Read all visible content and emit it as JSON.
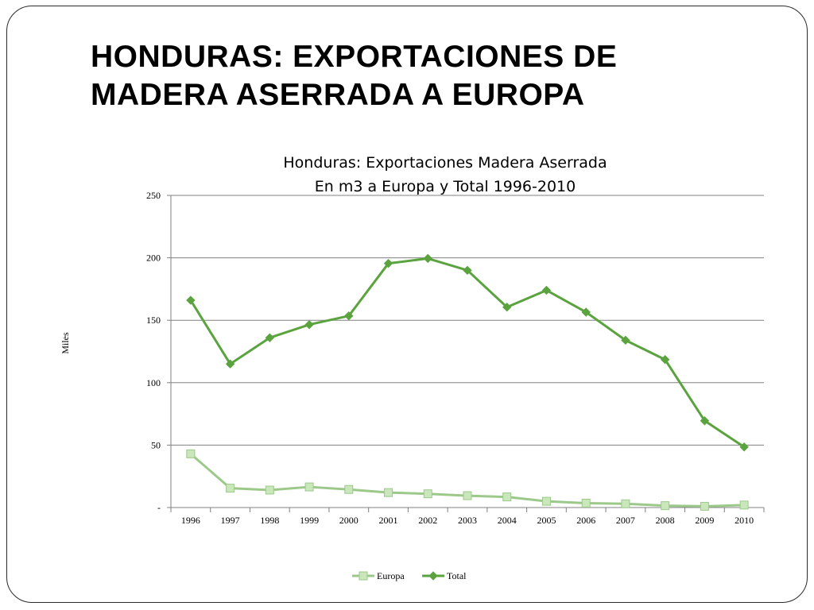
{
  "slide": {
    "title_line1": "HONDURAS: EXPORTACIONES DE",
    "title_line2": "MADERA ASERRADA A EUROPA"
  },
  "colors": {
    "total": "#5aa33f",
    "europa_line": "#9cc98a",
    "europa_fill": "#c9e7bb",
    "grid": "#808080",
    "frame": "#2a2a2a"
  },
  "chart_data": {
    "type": "line",
    "title": "Honduras: Exportaciones Madera Aserrada",
    "subtitle": "En m3  a Europa y Total 1996-2010",
    "ylabel": "Miles",
    "xlabel": "",
    "ylim": [
      0,
      250
    ],
    "yticks": [
      0,
      50,
      100,
      150,
      200,
      250
    ],
    "ytick_labels": [
      "-",
      "50",
      "100",
      "150",
      "200",
      "250"
    ],
    "grid": true,
    "legend_position": "bottom",
    "categories": [
      "1996",
      "1997",
      "1998",
      "1999",
      "2000",
      "2001",
      "2002",
      "2003",
      "2004",
      "2005",
      "2006",
      "2007",
      "2008",
      "2009",
      "2010"
    ],
    "series": [
      {
        "name": "Europa",
        "marker": "square",
        "values": [
          43,
          15.5,
          14,
          16.5,
          14.5,
          12,
          11,
          9.5,
          8.5,
          5,
          3.5,
          3,
          1.5,
          1,
          2
        ]
      },
      {
        "name": "Total",
        "marker": "diamond",
        "values": [
          166,
          115,
          136,
          146.5,
          153.5,
          195.5,
          199.5,
          190,
          160.5,
          174,
          156.5,
          134,
          118.5,
          69.5,
          48.5
        ]
      }
    ]
  }
}
